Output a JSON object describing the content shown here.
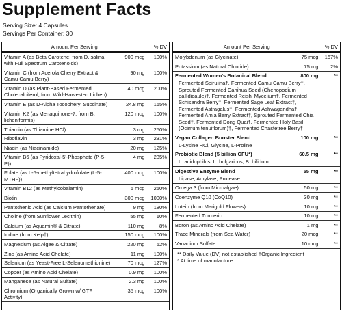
{
  "title": "Supplement Facts",
  "serving_size": "Serving Size: 4 Capsules",
  "servings_per_container": "Servings Per Container: 30",
  "left": {
    "header": {
      "amount": "Amount Per Serving",
      "dv": "% DV"
    },
    "rows": [
      {
        "name": "Vitamin A (as Beta Carotene; from D. salina with Full Spectrum Carotenoids)",
        "amount": "900 mcg",
        "dv": "100%"
      },
      {
        "name": "Vitamin C (from Acerola Cherry Extract & Camu Camu Berry)",
        "amount": "90 mg",
        "dv": "100%"
      },
      {
        "name": "Vitamin D (as Plant-Based Fermented Cholecalciferol; from Wild-Harvested Lichen)",
        "amount": "40 mcg",
        "dv": "200%"
      },
      {
        "name": "Vitamin E (as D-Alpha Tocopheryl Succinate)",
        "amount": "24.8 mg",
        "dv": "165%"
      },
      {
        "name": "Vitamin K2 (as Menaquinone-7; from B. licheniformis)",
        "amount": "120 mcg",
        "dv": "100%"
      },
      {
        "name": "Thiamin (as Thiamine HCl)",
        "amount": "3 mg",
        "dv": "250%"
      },
      {
        "name": "Riboflavin",
        "amount": "3 mg",
        "dv": "231%"
      },
      {
        "name": "Niacin (as Niacinamide)",
        "amount": "20 mg",
        "dv": "125%"
      },
      {
        "name": "Vitamin B6 (as Pyridoxal-5'-Phosphate (P-5-P))",
        "amount": "4 mg",
        "dv": "235%"
      },
      {
        "name": "Folate (as L-5-methyltetrahydrofolate (L-5-MTHF))",
        "amount": "400 mcg",
        "dv": "100%"
      },
      {
        "name": "Vitamin B12 (as Methylcobalamin)",
        "amount": "6 mcg",
        "dv": "250%"
      },
      {
        "name": "Biotin",
        "amount": "300 mcg",
        "dv": "1000%"
      },
      {
        "name": "Pantothenic Acid (as Calcium Pantothenate)",
        "amount": "9 mg",
        "dv": "180%"
      },
      {
        "name": "Choline (from Sunflower Lecithin)",
        "amount": "55 mg",
        "dv": "10%"
      },
      {
        "name": "Calcium (as Aquamin® & Citrate)",
        "amount": "110 mg",
        "dv": "8%"
      },
      {
        "name": "Iodine (from Kelp†)",
        "amount": "150 mcg",
        "dv": "100%"
      },
      {
        "name": "Magnesium (as Algae & Citrate)",
        "amount": "220 mg",
        "dv": "52%"
      },
      {
        "name": "Zinc (as Amino Acid Chelate)",
        "amount": "11 mg",
        "dv": "100%"
      },
      {
        "name": "Selenium (as Yeast-Free L-Selenomethionine)",
        "amount": "70 mcg",
        "dv": "127%"
      },
      {
        "name": "Copper (as Amino Acid Chelate)",
        "amount": "0.9 mg",
        "dv": "100%"
      },
      {
        "name": "Manganese (as Natural Sulfate)",
        "amount": "2.3 mg",
        "dv": "100%"
      },
      {
        "name": "Chromium (Organically Grown w/ GTF Activity)",
        "amount": "35 mcg",
        "dv": "100%"
      }
    ]
  },
  "right": {
    "header": {
      "amount": "Amount Per Serving",
      "dv": "% DV"
    },
    "rows": [
      {
        "name": "Molybdenum (as Glycinate)",
        "amount": "75 mcg",
        "dv": "167%"
      },
      {
        "name": "Potassium (as Natural Chloride)",
        "amount": "75 mg",
        "dv": "2%"
      },
      {
        "name": "Fermented Women's Botanical Blend",
        "amount": "800 mg",
        "dv": "**",
        "description": "Fermented Spirulina†, Fermented Camu Camu Berry†, Sprouted Fermented Canihua Seed (Chenopodium pallidicaule)†, Fermented Reishi Mycelium†, Fermented Schisandra Berry†, Fermented Sage Leaf Extract†, Fermented Astragalus†, Fermented Ashwagandha†, Fermented Amla Berry Extract†, Sprouted Fermented Chia Seed†, Fermented Dong Quai†, Fermented Holy Basil (Ocimum tenuiflorum)†, Fermented Chastetree Berry†"
      },
      {
        "name": "Vegan Collagen Booster Blend",
        "amount": "100 mg",
        "dv": "**",
        "description": "L-Lysine HCl, Glycine, L-Proline"
      },
      {
        "name": "Probiotic Blend (5 billion CFU*)",
        "amount": "60.5 mg",
        "dv": "**",
        "description": "L. acidophilus, L. bulgaricus, B. bifidum"
      },
      {
        "name": "Digestive Enzyme Blend",
        "amount": "55 mg",
        "dv": "**",
        "description": "Lipase, Amylase, Protease"
      },
      {
        "name": "Omega 3 (from Microalgae)",
        "amount": "50 mg",
        "dv": "**"
      },
      {
        "name": "Coenzyme Q10 (CoQ10)",
        "amount": "30 mg",
        "dv": "**"
      },
      {
        "name": "Lutein (from Marigold Flowers)",
        "amount": "10 mg",
        "dv": "**"
      },
      {
        "name": "Fermented Turmeric",
        "amount": "10 mg",
        "dv": "**"
      },
      {
        "name": "Boron (as Amino Acid Chelate)",
        "amount": "1 mg",
        "dv": "**"
      },
      {
        "name": "Trace Minerals (from Sea Water)",
        "amount": "20 mcg",
        "dv": "**"
      },
      {
        "name": "Vanadium Sulfate",
        "amount": "10 mcg",
        "dv": "**"
      }
    ]
  },
  "footnotes": [
    "** Daily Value (DV) not established †Organic Ingredient",
    "* At time of manufacture."
  ]
}
